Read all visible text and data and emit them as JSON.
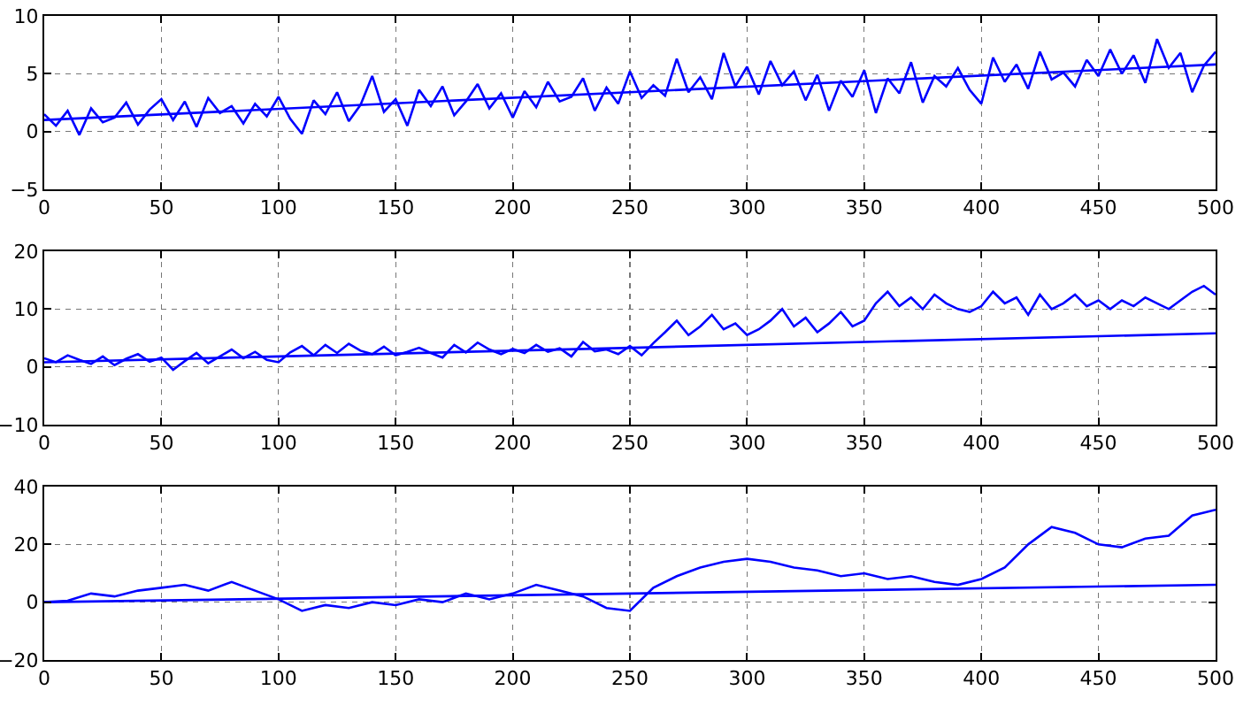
{
  "chart_data": [
    {
      "type": "line",
      "xlim": [
        0,
        500
      ],
      "xticks": [
        0,
        50,
        100,
        150,
        200,
        250,
        300,
        350,
        400,
        450,
        500
      ],
      "ylim": [
        -5,
        10
      ],
      "yticks": [
        {
          "value": -5,
          "label": "−5"
        },
        0,
        5,
        10
      ],
      "grid": true,
      "marker": "none",
      "line_style": "solid",
      "series": [
        {
          "color": "#0000ff",
          "x": [
            0,
            5,
            10,
            15,
            20,
            25,
            30,
            35,
            40,
            45,
            50,
            55,
            60,
            65,
            70,
            75,
            80,
            85,
            90,
            95,
            100,
            105,
            110,
            115,
            120,
            125,
            130,
            135,
            140,
            145,
            150,
            155,
            160,
            165,
            170,
            175,
            180,
            185,
            190,
            195,
            200,
            205,
            210,
            215,
            220,
            225,
            230,
            235,
            240,
            245,
            250,
            255,
            260,
            265,
            270,
            275,
            280,
            285,
            290,
            295,
            300,
            305,
            310,
            315,
            320,
            325,
            330,
            335,
            340,
            345,
            350,
            355,
            360,
            365,
            370,
            375,
            380,
            385,
            390,
            395,
            400,
            405,
            410,
            415,
            420,
            425,
            430,
            435,
            440,
            445,
            450,
            455,
            460,
            465,
            470,
            475,
            480,
            485,
            490,
            495,
            500
          ],
          "values": [
            1.5,
            0.5,
            1.8,
            -0.3,
            2,
            0.8,
            1.2,
            2.5,
            0.6,
            1.9,
            2.8,
            1.0,
            2.6,
            0.4,
            2.9,
            1.6,
            2.2,
            0.7,
            2.4,
            1.3,
            3.0,
            1.1,
            -0.2,
            2.7,
            1.5,
            3.4,
            0.9,
            2.3,
            4.8,
            1.7,
            2.8,
            0.5,
            3.6,
            2.2,
            3.9,
            1.4,
            2.6,
            4.1,
            2.0,
            3.3,
            1.2,
            3.5,
            2.1,
            4.3,
            2.6,
            3.0,
            4.6,
            1.8,
            3.8,
            2.4,
            5.2,
            2.9,
            4.0,
            3.1,
            6.3,
            3.4,
            4.7,
            2.8,
            6.8,
            3.9,
            5.6,
            3.2,
            6.1,
            4.0,
            5.2,
            2.7,
            4.9,
            1.8,
            4.4,
            3.0,
            5.3,
            1.6,
            4.6,
            3.3,
            6.0,
            2.5,
            4.8,
            3.9,
            5.5,
            3.6,
            2.4,
            6.4,
            4.3,
            5.8,
            3.7,
            6.9,
            4.5,
            5.1,
            3.9,
            6.2,
            4.8,
            7.1,
            5.0,
            6.6,
            4.2,
            8.0,
            5.5,
            6.8,
            3.4,
            5.7,
            6.9
          ]
        },
        {
          "color": "#0000ff",
          "x": [
            0,
            500
          ],
          "values": [
            1.0,
            5.8
          ]
        }
      ]
    },
    {
      "type": "line",
      "xlim": [
        0,
        500
      ],
      "xticks": [
        0,
        50,
        100,
        150,
        200,
        250,
        300,
        350,
        400,
        450,
        500
      ],
      "ylim": [
        -10,
        20
      ],
      "yticks": [
        {
          "value": -10,
          "label": "−10"
        },
        0,
        10,
        20
      ],
      "grid": true,
      "marker": "none",
      "line_style": "solid",
      "series": [
        {
          "color": "#0000ff",
          "x": [
            0,
            5,
            10,
            15,
            20,
            25,
            30,
            35,
            40,
            45,
            50,
            55,
            60,
            65,
            70,
            75,
            80,
            85,
            90,
            95,
            100,
            105,
            110,
            115,
            120,
            125,
            130,
            135,
            140,
            145,
            150,
            155,
            160,
            165,
            170,
            175,
            180,
            185,
            190,
            195,
            200,
            205,
            210,
            215,
            220,
            225,
            230,
            235,
            240,
            245,
            250,
            255,
            260,
            265,
            270,
            275,
            280,
            285,
            290,
            295,
            300,
            305,
            310,
            315,
            320,
            325,
            330,
            335,
            340,
            345,
            350,
            355,
            360,
            365,
            370,
            375,
            380,
            385,
            390,
            395,
            400,
            405,
            410,
            415,
            420,
            425,
            430,
            435,
            440,
            445,
            450,
            455,
            460,
            465,
            470,
            475,
            480,
            485,
            490,
            495,
            500
          ],
          "values": [
            1.5,
            0.8,
            2.0,
            1.2,
            0.5,
            1.8,
            0.3,
            1.4,
            2.2,
            0.9,
            1.6,
            -0.5,
            1.0,
            2.4,
            0.6,
            1.8,
            3.0,
            1.5,
            2.6,
            1.2,
            0.8,
            2.5,
            3.6,
            2.0,
            3.8,
            2.4,
            4.0,
            2.8,
            2.2,
            3.5,
            2.0,
            2.6,
            3.3,
            2.4,
            1.6,
            3.8,
            2.5,
            4.2,
            3.0,
            2.2,
            3.1,
            2.4,
            3.8,
            2.6,
            3.2,
            1.8,
            4.3,
            2.7,
            3.0,
            2.2,
            3.6,
            2.0,
            4.1,
            6.0,
            8.0,
            5.5,
            7.0,
            9.0,
            6.5,
            7.5,
            5.5,
            6.5,
            8.0,
            10.0,
            7.0,
            8.5,
            6.0,
            7.5,
            9.5,
            7.0,
            8.0,
            11.0,
            13.0,
            10.5,
            12.0,
            10.0,
            12.5,
            11.0,
            10.0,
            9.5,
            10.5,
            13.0,
            11.0,
            12.0,
            9.0,
            12.5,
            10.0,
            11.0,
            12.5,
            10.5,
            11.5,
            10.0,
            11.5,
            10.5,
            12.0,
            11.0,
            10.0,
            11.5,
            13.0,
            14.0,
            12.5
          ]
        },
        {
          "color": "#0000ff",
          "x": [
            0,
            500
          ],
          "values": [
            0.8,
            5.8
          ]
        }
      ]
    },
    {
      "type": "line",
      "xlim": [
        0,
        500
      ],
      "xticks": [
        0,
        50,
        100,
        150,
        200,
        250,
        300,
        350,
        400,
        450,
        500
      ],
      "ylim": [
        -20,
        40
      ],
      "yticks": [
        {
          "value": -20,
          "label": "−20"
        },
        0,
        20,
        40
      ],
      "grid": true,
      "marker": "none",
      "line_style": "solid",
      "series": [
        {
          "color": "#0000ff",
          "x": [
            0,
            10,
            20,
            30,
            40,
            50,
            60,
            70,
            80,
            90,
            100,
            110,
            120,
            130,
            140,
            150,
            160,
            170,
            180,
            190,
            200,
            210,
            220,
            230,
            240,
            250,
            260,
            270,
            280,
            290,
            300,
            310,
            320,
            330,
            340,
            350,
            360,
            370,
            380,
            390,
            400,
            410,
            420,
            430,
            440,
            450,
            460,
            470,
            480,
            490,
            500
          ],
          "values": [
            0,
            0.5,
            3,
            2,
            4,
            5,
            6,
            4,
            7,
            4,
            1,
            -3,
            -1,
            -2,
            0,
            -1,
            1,
            0,
            3,
            1,
            3,
            6,
            4,
            2,
            -2,
            -3,
            5,
            9,
            12,
            14,
            15,
            14,
            12,
            11,
            9,
            10,
            8,
            9,
            7,
            6,
            8,
            12,
            20,
            26,
            24,
            20,
            19,
            22,
            23,
            30,
            32
          ]
        },
        {
          "color": "#0000ff",
          "x": [
            0,
            500
          ],
          "values": [
            0,
            6
          ]
        }
      ]
    }
  ]
}
